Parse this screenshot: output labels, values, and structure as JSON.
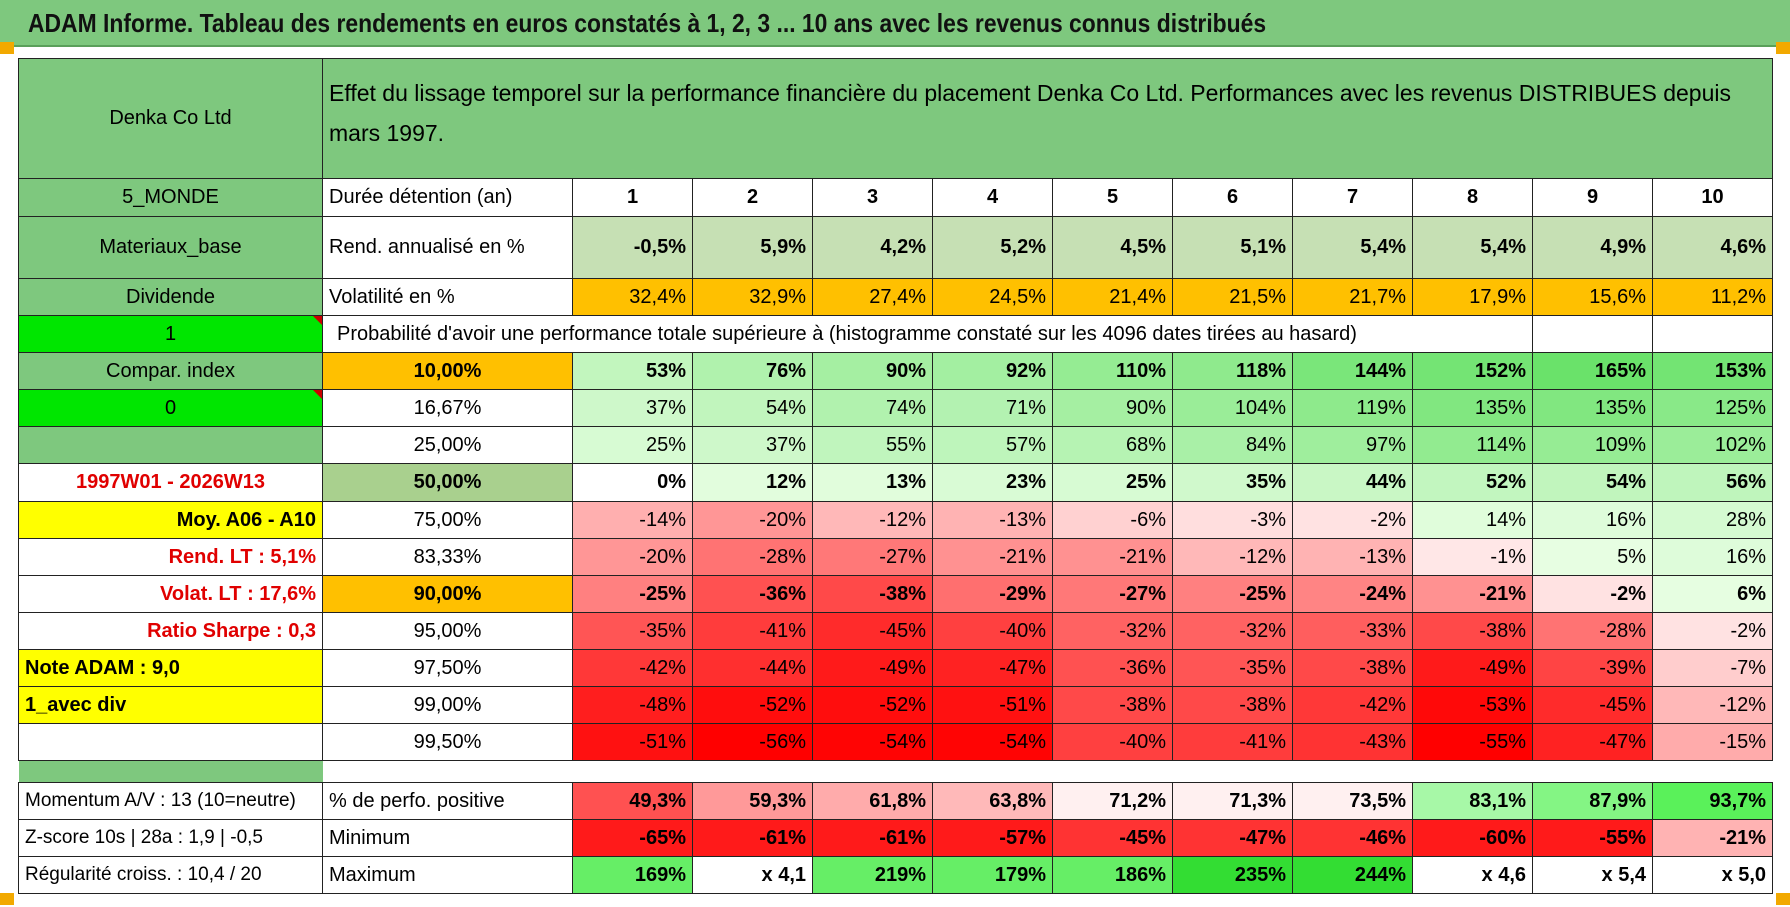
{
  "title": "ADAM Informe. Tableau des rendements en euros constatés à 1, 2, 3 ... 10 ans avec les revenus connus distribués",
  "header": {
    "company": "Denka Co Ltd",
    "description": "Effet du lissage temporel sur la performance financière du placement Denka Co Ltd. Performances avec les revenus DISTRIBUES depuis mars 1997."
  },
  "years_row": {
    "left": "5_MONDE",
    "label": "Durée détention (an)",
    "years": [
      "1",
      "2",
      "3",
      "4",
      "5",
      "6",
      "7",
      "8",
      "9",
      "10"
    ]
  },
  "rend_row": {
    "left": "Materiaux_base",
    "label": "Rend. annualisé en %",
    "values": [
      "-0,5%",
      "5,9%",
      "4,2%",
      "5,2%",
      "4,5%",
      "5,1%",
      "5,4%",
      "5,4%",
      "4,9%",
      "4,6%"
    ]
  },
  "vol_row": {
    "left": "Dividende",
    "label": "Volatilité en %",
    "values": [
      "32,4%",
      "32,9%",
      "27,4%",
      "24,5%",
      "21,4%",
      "21,5%",
      "21,7%",
      "17,9%",
      "15,6%",
      "11,2%"
    ]
  },
  "prob_row": {
    "left": "1",
    "text": "Probabilité d'avoir une performance totale supérieure à (histogramme constaté sur les 4096 dates tirées au hasard)"
  },
  "quantiles": [
    {
      "left": "Compar. index",
      "pct": "10,00%",
      "values": [
        "53%",
        "76%",
        "90%",
        "92%",
        "110%",
        "118%",
        "144%",
        "152%",
        "165%",
        "153%"
      ]
    },
    {
      "left": "0",
      "pct": "16,67%",
      "values": [
        "37%",
        "54%",
        "74%",
        "71%",
        "90%",
        "104%",
        "119%",
        "135%",
        "135%",
        "125%"
      ]
    },
    {
      "left": "",
      "pct": "25,00%",
      "values": [
        "25%",
        "37%",
        "55%",
        "57%",
        "68%",
        "84%",
        "97%",
        "114%",
        "109%",
        "102%"
      ]
    },
    {
      "left": "1997W01 - 2026W13",
      "pct": "50,00%",
      "values": [
        "0%",
        "12%",
        "13%",
        "23%",
        "25%",
        "35%",
        "44%",
        "52%",
        "54%",
        "56%"
      ]
    },
    {
      "left": "Moy. A06 - A10",
      "pct": "75,00%",
      "values": [
        "-14%",
        "-20%",
        "-12%",
        "-13%",
        "-6%",
        "-3%",
        "-2%",
        "14%",
        "16%",
        "28%"
      ]
    },
    {
      "left": "Rend. LT :   5,1%",
      "pct": "83,33%",
      "values": [
        "-20%",
        "-28%",
        "-27%",
        "-21%",
        "-21%",
        "-12%",
        "-13%",
        "-1%",
        "5%",
        "16%"
      ]
    },
    {
      "left": "Volat. LT :   17,6%",
      "pct": "90,00%",
      "values": [
        "-25%",
        "-36%",
        "-38%",
        "-29%",
        "-27%",
        "-25%",
        "-24%",
        "-21%",
        "-2%",
        "6%"
      ]
    },
    {
      "left": "Ratio Sharpe :    0,3",
      "pct": "95,00%",
      "values": [
        "-35%",
        "-41%",
        "-45%",
        "-40%",
        "-32%",
        "-32%",
        "-33%",
        "-38%",
        "-28%",
        "-2%"
      ]
    },
    {
      "left": "Note ADAM : 9,0",
      "pct": "97,50%",
      "values": [
        "-42%",
        "-44%",
        "-49%",
        "-47%",
        "-36%",
        "-35%",
        "-38%",
        "-49%",
        "-39%",
        "-7%"
      ]
    },
    {
      "left": "1_avec div",
      "pct": "99,00%",
      "values": [
        "-48%",
        "-52%",
        "-52%",
        "-51%",
        "-38%",
        "-38%",
        "-42%",
        "-53%",
        "-45%",
        "-12%"
      ]
    },
    {
      "left": "",
      "pct": "99,50%",
      "values": [
        "-51%",
        "-56%",
        "-54%",
        "-54%",
        "-40%",
        "-41%",
        "-43%",
        "-55%",
        "-47%",
        "-15%"
      ]
    }
  ],
  "bottom": [
    {
      "left": "Momentum A/V : 13 (10=neutre)",
      "label": "% de perfo. positive",
      "values": [
        "49,3%",
        "59,3%",
        "61,8%",
        "63,8%",
        "71,2%",
        "71,3%",
        "73,5%",
        "83,1%",
        "87,9%",
        "93,7%"
      ]
    },
    {
      "left": "Z-score 10s | 28a : 1,9 | -0,5",
      "label": "Minimum",
      "values": [
        "-65%",
        "-61%",
        "-61%",
        "-57%",
        "-45%",
        "-47%",
        "-46%",
        "-60%",
        "-55%",
        "-21%"
      ]
    },
    {
      "left": "Régularité croiss. : 10,4 / 20",
      "label": "Maximum",
      "values": [
        "169%",
        "x 4,1",
        "219%",
        "179%",
        "186%",
        "235%",
        "244%",
        "x 4,6",
        "x 5,4",
        "x 5,0"
      ]
    }
  ],
  "colors": {
    "header_green": "#7ec87e",
    "left_green": "#7ec87e",
    "bright_green": "#00e600",
    "yellow": "#ffff00",
    "orange": "#ffc000",
    "rend_green": "#c6e0b4",
    "median_green": "#a9d08e",
    "red_text": "#e00000"
  }
}
